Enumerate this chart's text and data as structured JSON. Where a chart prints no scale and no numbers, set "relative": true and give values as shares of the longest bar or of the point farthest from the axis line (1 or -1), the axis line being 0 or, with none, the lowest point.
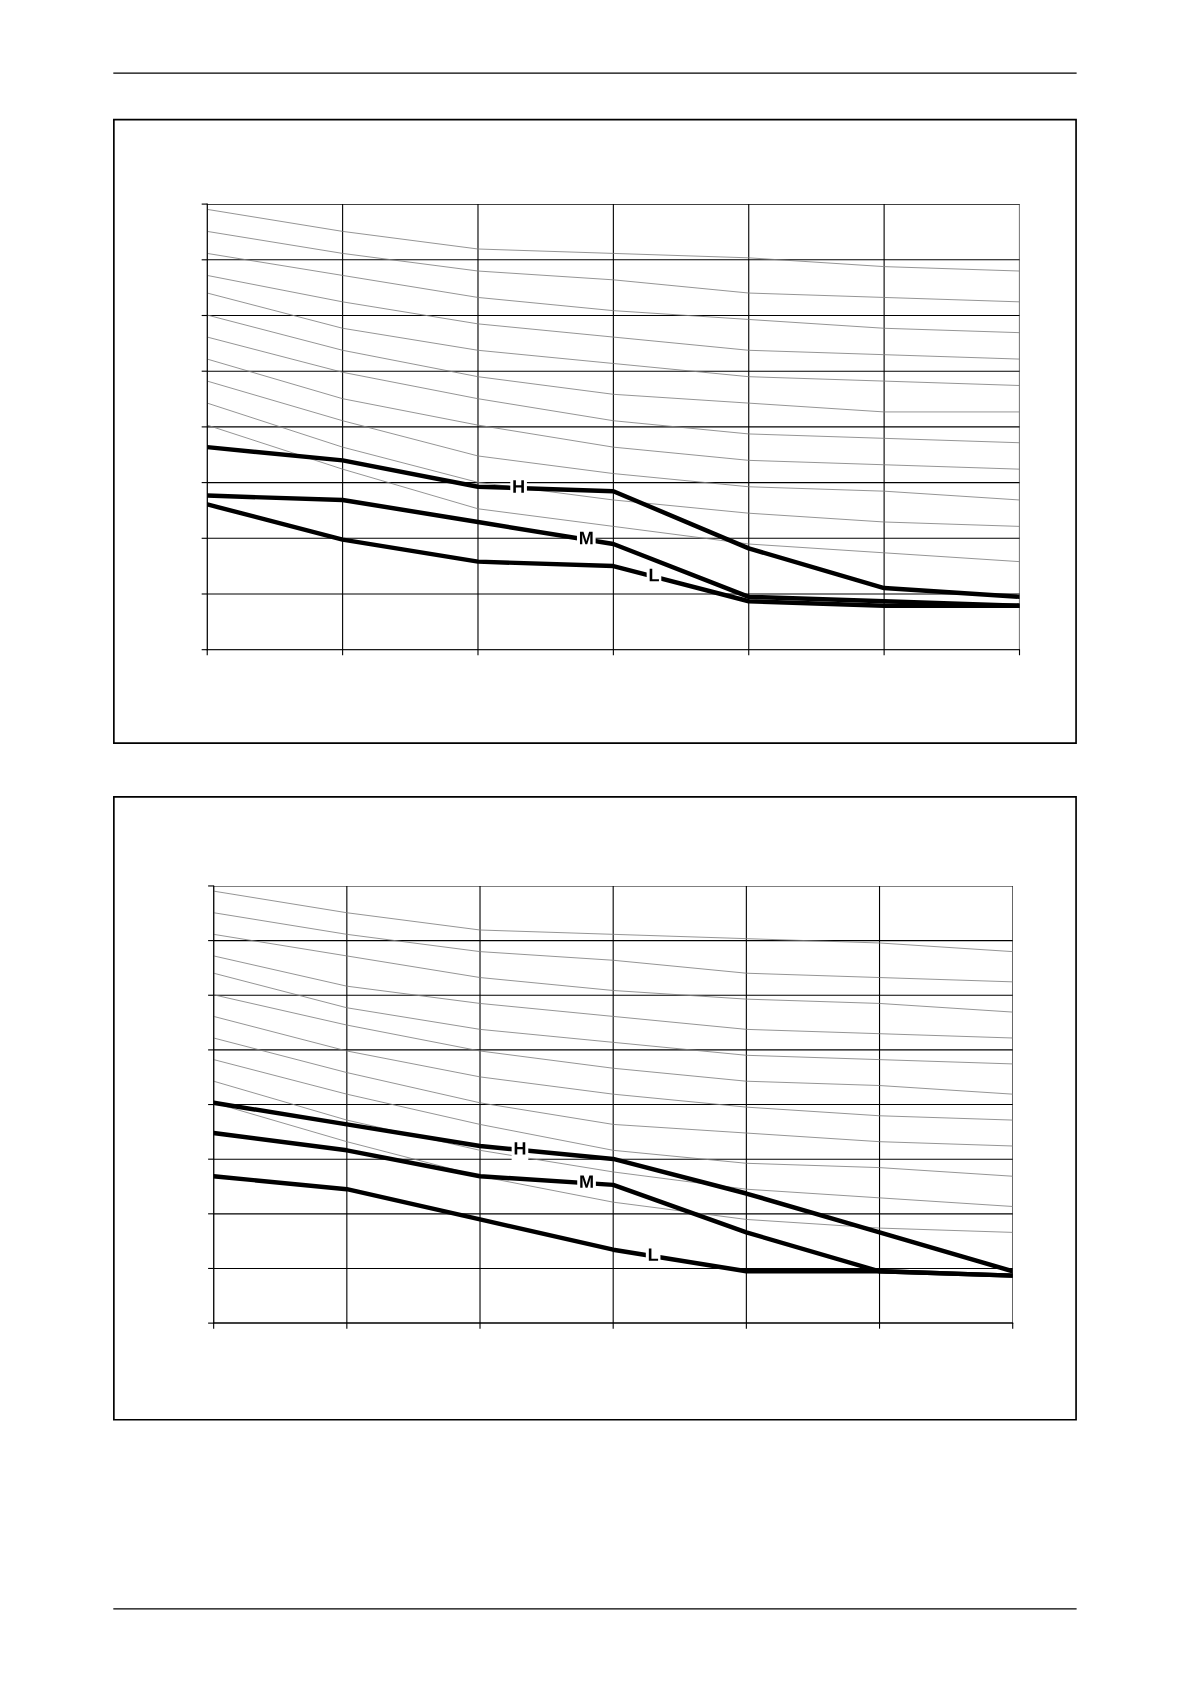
{
  "chart_data": [
    {
      "type": "line",
      "relative": true,
      "grid": true,
      "categories": [
        null,
        null,
        null,
        null,
        null,
        null,
        null
      ],
      "series": [
        {
          "color": "#808080",
          "values": [
            1.0,
            0.95,
            0.91,
            0.9,
            0.89,
            0.87,
            0.86
          ]
        },
        {
          "color": "#808080",
          "values": [
            0.95,
            0.9,
            0.86,
            0.84,
            0.81,
            0.8,
            0.79
          ]
        },
        {
          "color": "#808080",
          "values": [
            0.9,
            0.85,
            0.8,
            0.77,
            0.75,
            0.73,
            0.72
          ]
        },
        {
          "color": "#808080",
          "values": [
            0.85,
            0.79,
            0.74,
            0.71,
            0.68,
            0.67,
            0.66
          ]
        },
        {
          "color": "#808080",
          "values": [
            0.81,
            0.73,
            0.68,
            0.65,
            0.62,
            0.61,
            0.6
          ]
        },
        {
          "color": "#808080",
          "values": [
            0.76,
            0.68,
            0.62,
            0.58,
            0.56,
            0.54,
            0.54
          ]
        },
        {
          "color": "#808080",
          "values": [
            0.71,
            0.63,
            0.57,
            0.52,
            0.49,
            0.48,
            0.47
          ]
        },
        {
          "color": "#808080",
          "values": [
            0.66,
            0.57,
            0.51,
            0.46,
            0.43,
            0.42,
            0.41
          ]
        },
        {
          "color": "#808080",
          "values": [
            0.61,
            0.52,
            0.44,
            0.4,
            0.37,
            0.36,
            0.34
          ]
        },
        {
          "color": "#808080",
          "values": [
            0.56,
            0.46,
            0.38,
            0.34,
            0.31,
            0.29,
            0.28
          ]
        },
        {
          "color": "#808080",
          "values": [
            0.51,
            0.41,
            0.32,
            0.28,
            0.24,
            0.22,
            0.2
          ]
        },
        {
          "name": "H",
          "color": "#000000",
          "values": [
            0.46,
            0.43,
            0.37,
            0.36,
            0.23,
            0.14,
            0.12
          ]
        },
        {
          "name": "M",
          "color": "#000000",
          "values": [
            0.35,
            0.34,
            0.29,
            0.24,
            0.12,
            0.11,
            0.1
          ]
        },
        {
          "name": "L",
          "color": "#000000",
          "values": [
            0.33,
            0.25,
            0.2,
            0.19,
            0.11,
            0.1,
            0.1
          ]
        }
      ]
    },
    {
      "type": "line",
      "relative": true,
      "grid": true,
      "categories": [
        null,
        null,
        null,
        null,
        null,
        null,
        null
      ],
      "series": [
        {
          "color": "#808080",
          "values": [
            1.0,
            0.95,
            0.91,
            0.9,
            0.89,
            0.88,
            0.86
          ]
        },
        {
          "color": "#808080",
          "values": [
            0.95,
            0.9,
            0.86,
            0.84,
            0.81,
            0.8,
            0.79
          ]
        },
        {
          "color": "#808080",
          "values": [
            0.9,
            0.85,
            0.8,
            0.77,
            0.75,
            0.74,
            0.72
          ]
        },
        {
          "color": "#808080",
          "values": [
            0.85,
            0.78,
            0.74,
            0.71,
            0.68,
            0.67,
            0.66
          ]
        },
        {
          "color": "#808080",
          "values": [
            0.81,
            0.73,
            0.68,
            0.65,
            0.62,
            0.61,
            0.6
          ]
        },
        {
          "color": "#808080",
          "values": [
            0.76,
            0.69,
            0.63,
            0.59,
            0.56,
            0.55,
            0.53
          ]
        },
        {
          "color": "#808080",
          "values": [
            0.71,
            0.63,
            0.57,
            0.53,
            0.5,
            0.48,
            0.47
          ]
        },
        {
          "color": "#808080",
          "values": [
            0.66,
            0.58,
            0.51,
            0.46,
            0.44,
            0.42,
            0.41
          ]
        },
        {
          "color": "#808080",
          "values": [
            0.61,
            0.53,
            0.46,
            0.4,
            0.37,
            0.36,
            0.34
          ]
        },
        {
          "color": "#808080",
          "values": [
            0.56,
            0.47,
            0.4,
            0.35,
            0.31,
            0.29,
            0.27
          ]
        },
        {
          "color": "#808080",
          "values": [
            0.51,
            0.42,
            0.34,
            0.28,
            0.24,
            0.22,
            0.21
          ]
        },
        {
          "name": "H",
          "color": "#000000",
          "values": [
            0.51,
            0.46,
            0.41,
            0.38,
            0.3,
            0.21,
            0.12
          ]
        },
        {
          "name": "M",
          "color": "#000000",
          "values": [
            0.44,
            0.4,
            0.34,
            0.32,
            0.21,
            0.12,
            0.11
          ]
        },
        {
          "name": "L",
          "color": "#000000",
          "values": [
            0.34,
            0.31,
            0.24,
            0.17,
            0.12,
            0.12,
            0.11
          ]
        }
      ]
    }
  ]
}
